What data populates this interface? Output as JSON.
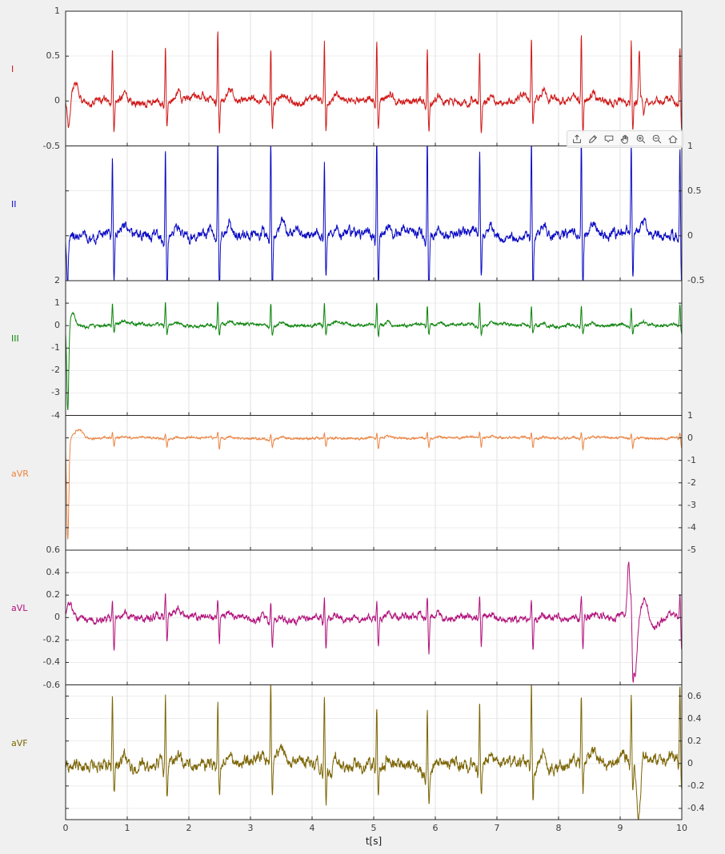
{
  "figure": {
    "background": "#f0f0f0",
    "plot_background": "#ffffff",
    "axis_color": "#262626",
    "grid_color": "#e2e2e2",
    "grid_color_h": "#ececec",
    "tick_label_color": "#3c3c3c",
    "xlabel": "t[s]"
  },
  "toolbar": {
    "icon_color": "#4f4f4f",
    "icons": [
      {
        "name": "export-icon",
        "title": "Export"
      },
      {
        "name": "brush-icon",
        "title": "Brush/Select Data"
      },
      {
        "name": "datatips-icon",
        "title": "Data Tips"
      },
      {
        "name": "pan-icon",
        "title": "Pan"
      },
      {
        "name": "zoom-in-icon",
        "title": "Zoom In"
      },
      {
        "name": "zoom-out-icon",
        "title": "Zoom Out"
      },
      {
        "name": "restore-view-icon",
        "title": "Restore View"
      }
    ]
  },
  "chart_data": {
    "type": "line",
    "title": "",
    "xlabel": "t[s]",
    "x_range": [
      0,
      10
    ],
    "x_ticks": [
      0,
      1,
      2,
      3,
      4,
      5,
      6,
      7,
      8,
      9,
      10
    ],
    "grid": true,
    "legend": false,
    "sample_rate": 240,
    "beat_times": [
      0.76,
      1.62,
      2.47,
      3.33,
      4.2,
      5.05,
      5.87,
      6.72,
      7.56,
      8.37,
      9.18,
      9.97
    ],
    "subplots": [
      {
        "label": "I",
        "color": "#d01818",
        "seed": 11,
        "ylim": [
          -0.5,
          1
        ],
        "yticks": [
          1,
          0.5,
          0,
          -0.5
        ],
        "tick_side": "left",
        "wave": {
          "r": 0.66,
          "q": 0.05,
          "s": 0.33,
          "p": 0.04,
          "t": 0.09,
          "noise": 0.042
        },
        "events": [
          {
            "t": 0.05,
            "amp": -0.3,
            "w": 0.03
          },
          {
            "t": 0.16,
            "amp": 0.22,
            "w": 0.07
          },
          {
            "t": 9.31,
            "amp": 0.55,
            "w": 0.016
          },
          {
            "t": 9.38,
            "amp": -0.22,
            "w": 0.02
          }
        ]
      },
      {
        "label": "II",
        "color": "#0a0ac4",
        "seed": 22,
        "ylim": [
          -0.5,
          1
        ],
        "yticks": [
          1,
          0.5,
          0,
          -0.5
        ],
        "tick_side": "right",
        "wave": {
          "r": 0.98,
          "q": 0.07,
          "s": 0.55,
          "p": 0.05,
          "t": 0.11,
          "noise": 0.055
        },
        "events": [
          {
            "t": 0.03,
            "amp": -0.55,
            "w": 0.02
          }
        ]
      },
      {
        "label": "III",
        "color": "#0c840c",
        "seed": 33,
        "ylim": [
          -4,
          2
        ],
        "yticks": [
          2,
          1,
          0,
          -1,
          -2,
          -3,
          -4
        ],
        "tick_side": "left",
        "wave": {
          "r": 0.95,
          "q": 0.1,
          "s": 0.42,
          "p": 0.05,
          "t": 0.12,
          "noise": 0.07
        },
        "events": [
          {
            "t": 0.035,
            "amp": -3.85,
            "w": 0.022
          },
          {
            "t": 0.12,
            "amp": 0.55,
            "w": 0.05
          }
        ]
      },
      {
        "label": "aVR",
        "color": "#ec8441",
        "seed": 44,
        "ylim": [
          -5,
          1
        ],
        "yticks": [
          1,
          0,
          -1,
          -2,
          -3,
          -4,
          -5
        ],
        "tick_side": "right",
        "wave": {
          "r": 0.24,
          "q": 0.04,
          "s": 0.42,
          "p": 0.03,
          "t": 0.06,
          "noise": 0.05
        },
        "events": [
          {
            "t": 0.035,
            "amp": -4.55,
            "w": 0.025
          },
          {
            "t": 0.22,
            "amp": 0.38,
            "w": 0.09
          }
        ]
      },
      {
        "label": "aVL",
        "color": "#b2127c",
        "seed": 55,
        "ylim": [
          -0.6,
          0.6
        ],
        "yticks": [
          0.6,
          0.4,
          0.2,
          0,
          -0.2,
          -0.4,
          -0.6
        ],
        "tick_side": "left",
        "wave": {
          "r": 0.17,
          "q": 0.03,
          "s": 0.27,
          "p": 0.02,
          "t": 0.04,
          "noise": 0.032
        },
        "events": [
          {
            "t": 0.07,
            "amp": 0.12,
            "w": 0.05
          },
          {
            "t": 9.14,
            "amp": 0.46,
            "w": 0.035
          },
          {
            "t": 9.24,
            "amp": -0.5,
            "w": 0.05
          },
          {
            "t": 9.4,
            "amp": 0.16,
            "w": 0.07
          },
          {
            "t": 9.58,
            "amp": -0.08,
            "w": 0.09
          }
        ]
      },
      {
        "label": "aVF",
        "color": "#7c6504",
        "seed": 66,
        "ylim": [
          -0.5,
          0.7
        ],
        "yticks": [
          0.6,
          0.4,
          0.2,
          0,
          -0.2,
          -0.4
        ],
        "tick_side": "right",
        "wave": {
          "r": 0.62,
          "q": 0.07,
          "s": 0.3,
          "p": 0.05,
          "t": 0.1,
          "noise": 0.055
        },
        "events": [
          {
            "t": 9.3,
            "amp": -0.52,
            "w": 0.045
          }
        ]
      }
    ]
  }
}
